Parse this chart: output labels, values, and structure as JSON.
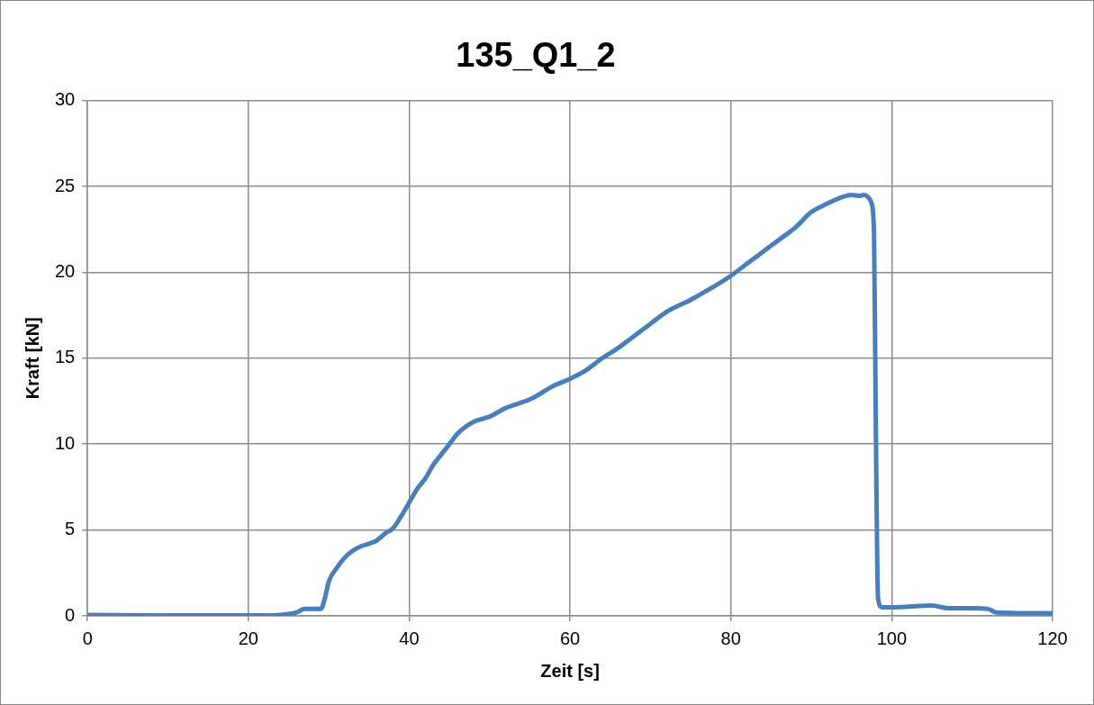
{
  "chart_data": {
    "type": "line",
    "title": "135_Q1_2",
    "xlabel": "Zeit [s]",
    "ylabel": "Kraft [kN]",
    "xlim": [
      0,
      120
    ],
    "xticks": [
      0,
      20,
      40,
      60,
      80,
      100,
      120
    ],
    "ylim": [
      0,
      30
    ],
    "yticks": [
      0,
      5,
      10,
      15,
      20,
      25,
      30
    ],
    "grid": true,
    "legend": false,
    "marker": "none",
    "line_style": "solid",
    "series": [
      {
        "color": "#4a7ebb",
        "x": [
          0,
          10,
          20,
          23,
          25,
          26,
          27,
          29,
          29.5,
          30,
          31,
          32,
          33,
          34,
          35,
          36,
          37,
          38,
          39,
          40,
          41,
          42,
          43,
          44,
          45,
          46,
          47,
          48,
          50,
          52,
          55,
          58,
          60,
          62,
          64,
          66,
          68,
          70,
          72,
          75,
          78,
          80,
          82,
          84,
          86,
          88,
          90,
          92,
          94,
          95,
          96,
          96.5,
          97,
          97.5,
          97.8,
          98,
          98.3,
          98.8,
          100,
          105,
          107,
          110,
          112,
          113,
          120
        ],
        "values": [
          0.05,
          0.03,
          0.03,
          0.03,
          0.1,
          0.2,
          0.4,
          0.4,
          1,
          2,
          2.8,
          3.4,
          3.8,
          4.05,
          4.2,
          4.4,
          4.8,
          5.1,
          5.8,
          6.6,
          7.4,
          8,
          8.8,
          9.4,
          10,
          10.6,
          11,
          11.3,
          11.6,
          12.1,
          12.6,
          13.4,
          13.8,
          14.3,
          15,
          15.6,
          16.3,
          17,
          17.7,
          18.4,
          19.2,
          19.8,
          20.5,
          21.2,
          21.9,
          22.6,
          23.5,
          24,
          24.4,
          24.5,
          24.45,
          24.5,
          24.4,
          24,
          22.2,
          12,
          1,
          0.5,
          0.5,
          0.6,
          0.45,
          0.45,
          0.4,
          0.2,
          0.15
        ]
      }
    ]
  }
}
